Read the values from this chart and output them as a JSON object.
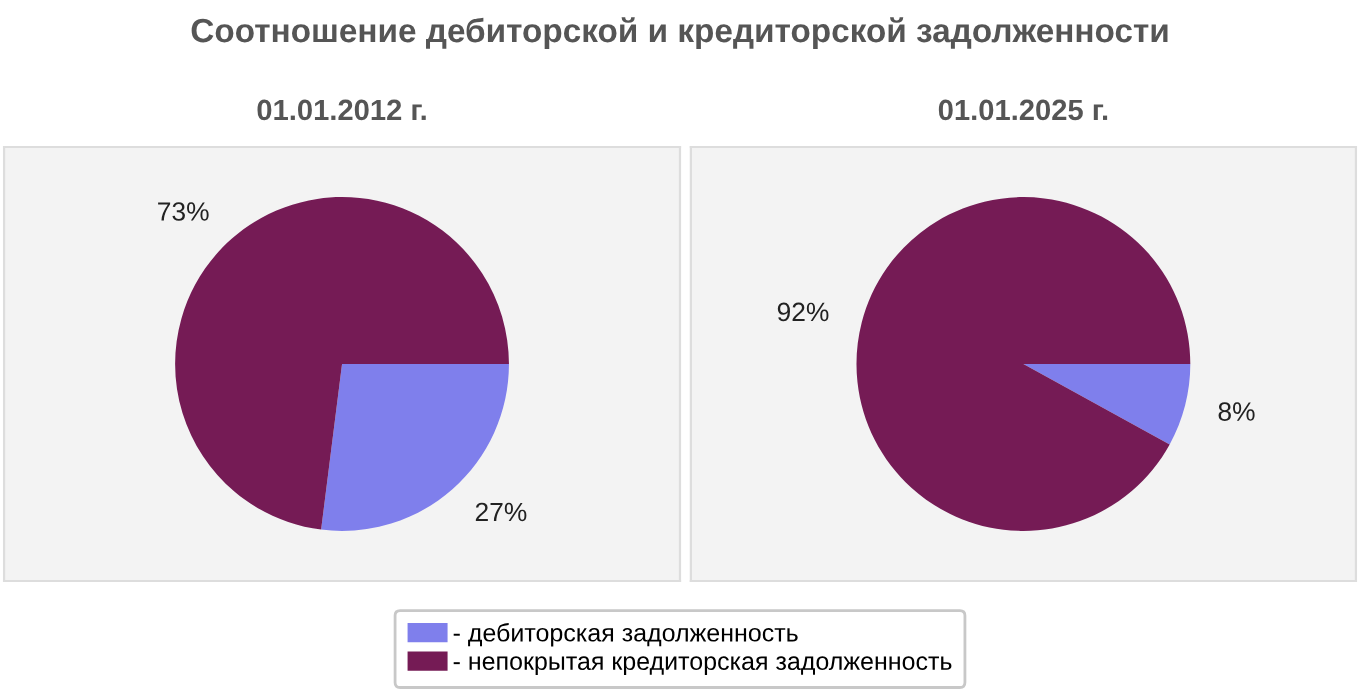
{
  "chart_data": [
    {
      "type": "pie",
      "title": "01.01.2012 г.",
      "annotations": [
        "Соотношение дебиторской и кредиторской задолженности"
      ],
      "categories": [
        "- дебиторская задолженность",
        "- непокрытая кредиторская задолженность"
      ],
      "values": [
        27,
        73
      ],
      "value_labels": [
        "27%",
        "73%"
      ],
      "colors": [
        "#7f7fec",
        "#751b55"
      ],
      "legend": "bottom"
    },
    {
      "type": "pie",
      "title": "01.01.2025 г.",
      "categories": [
        null,
        null
      ],
      "values": [
        8,
        92
      ],
      "value_labels": [
        "8%",
        "92%"
      ],
      "colors": [
        "#7f7fec",
        "#751b55"
      ]
    }
  ]
}
